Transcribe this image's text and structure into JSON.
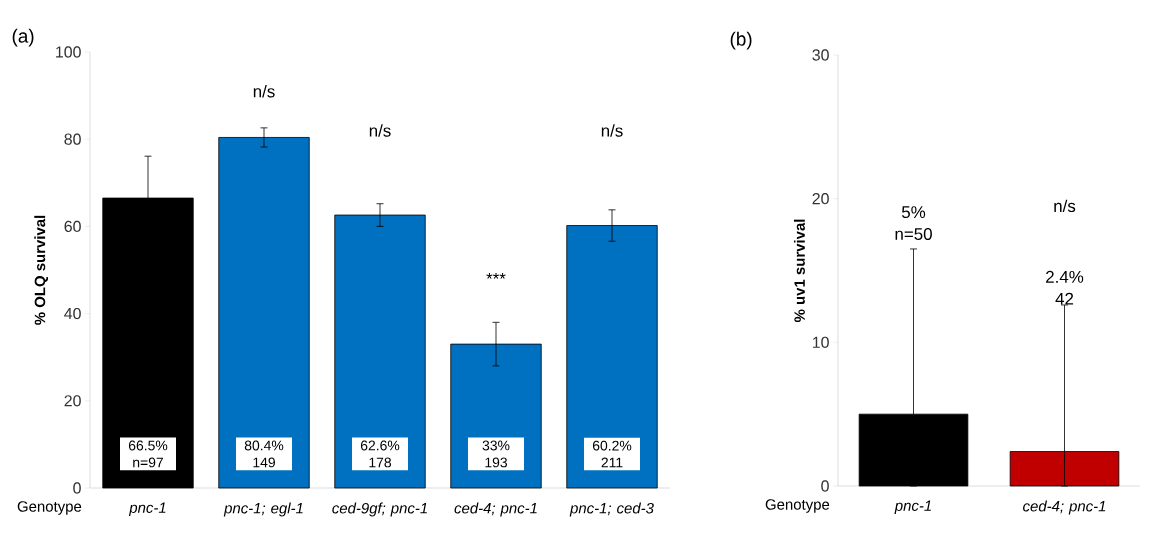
{
  "chart_data": [
    {
      "type": "bar",
      "title": "(a)",
      "xlabel": "Genotype",
      "ylabel": "% OLQ survival",
      "categories": [
        "pnc-1",
        "pnc-1; egl-1",
        "ced-9gf; pnc-1",
        "ced-4; pnc-1",
        "pnc-1; ced-3"
      ],
      "values": [
        66.5,
        80.4,
        62.6,
        33,
        60.2
      ],
      "colors": [
        "#000000",
        "#0070c0",
        "#0070c0",
        "#0070c0",
        "#0070c0"
      ],
      "errors": [
        9.6,
        2.2,
        2.6,
        5,
        3.6
      ],
      "value_labels": [
        "66.5% n=97",
        "80.4% 149",
        "62.6% 178",
        "33% 193",
        "60.2% 211"
      ],
      "ylim": [
        0,
        100
      ],
      "yticks": [
        0,
        20,
        40,
        60,
        80,
        100
      ],
      "annotations": [
        "n/s",
        "n/s",
        "***",
        "n/s"
      ]
    },
    {
      "type": "bar",
      "title": "(b)",
      "xlabel": "Genotype",
      "ylabel": "% uv1 survival",
      "categories": [
        "pnc-1",
        "ced-4; pnc-1"
      ],
      "values": [
        5,
        2.4
      ],
      "colors": [
        "#000000",
        "#c00000"
      ],
      "errors": [
        [
          0,
          16.5
        ],
        [
          0,
          12.6
        ]
      ],
      "ylim": [
        0,
        30
      ],
      "yticks": [
        0,
        10,
        20,
        30
      ],
      "annotations": [
        "5% n=50",
        "n/s",
        "2.4% 42"
      ]
    }
  ]
}
